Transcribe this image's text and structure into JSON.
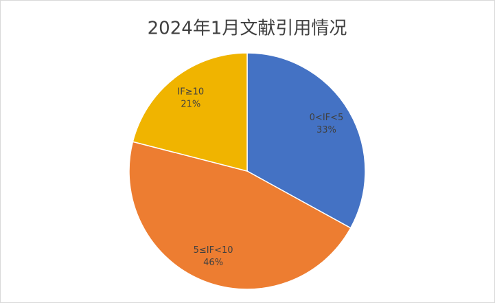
{
  "chart_data": {
    "type": "pie",
    "title": "2024年1月文献引用情况",
    "categories": [
      "0<IF<5",
      "5≤IF<10",
      "IF≥10"
    ],
    "values": [
      33,
      46,
      21
    ],
    "value_labels": [
      "33%",
      "46%",
      "21%"
    ],
    "colors": [
      "#4472c4",
      "#ed7d31",
      "#f0b400"
    ]
  }
}
